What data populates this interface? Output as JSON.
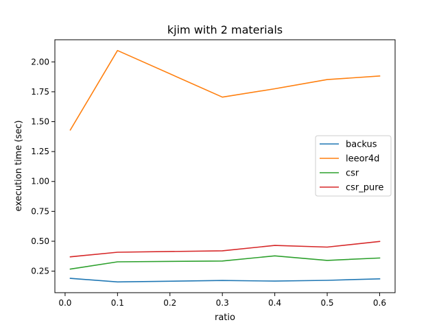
{
  "chart_data": {
    "type": "line",
    "title": "kjim with 2 materials",
    "xlabel": "ratio",
    "ylabel": "execution time (sec)",
    "x": [
      0.01,
      0.1,
      0.3,
      0.4,
      0.5,
      0.6
    ],
    "xlim": [
      -0.0195,
      0.6295
    ],
    "ylim": [
      0.07,
      2.185
    ],
    "xticks": [
      0.0,
      0.1,
      0.2,
      0.3,
      0.4,
      0.5,
      0.6
    ],
    "xtick_labels": [
      "0.0",
      "0.1",
      "0.2",
      "0.3",
      "0.4",
      "0.5",
      "0.6"
    ],
    "yticks": [
      0.25,
      0.5,
      0.75,
      1.0,
      1.25,
      1.5,
      1.75,
      2.0
    ],
    "ytick_labels": [
      "0.25",
      "0.50",
      "0.75",
      "1.00",
      "1.25",
      "1.50",
      "1.75",
      "2.00"
    ],
    "grid": false,
    "legend_position": "center-right",
    "series": [
      {
        "name": "backus",
        "color": "#1f77b4",
        "values": [
          0.19,
          0.16,
          0.172,
          0.167,
          0.173,
          0.186
        ]
      },
      {
        "name": "leeor4d",
        "color": "#ff7f0e",
        "values": [
          1.43,
          2.095,
          1.705,
          1.775,
          1.852,
          1.882
        ]
      },
      {
        "name": "csr",
        "color": "#2ca02c",
        "values": [
          0.267,
          0.328,
          0.335,
          0.378,
          0.34,
          0.36
        ]
      },
      {
        "name": "csr_pure",
        "color": "#d62728",
        "values": [
          0.37,
          0.408,
          0.42,
          0.465,
          0.451,
          0.498
        ]
      }
    ]
  }
}
